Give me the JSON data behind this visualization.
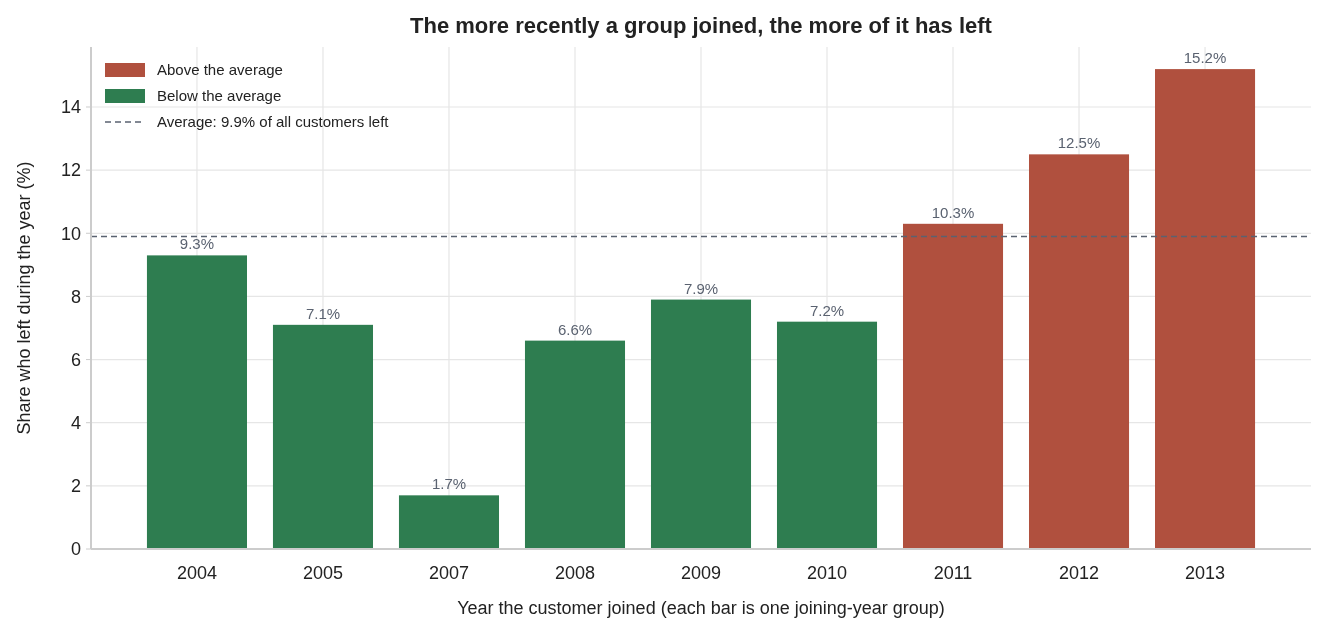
{
  "chart_data": {
    "type": "bar",
    "title": "The more recently a group joined, the more of it has left",
    "xlabel": "Year the customer joined (each bar is one joining-year group)",
    "ylabel": "Share who left during the year (%)",
    "categories": [
      "2004",
      "2005",
      "2007",
      "2008",
      "2009",
      "2010",
      "2011",
      "2012",
      "2013"
    ],
    "series": [
      {
        "name": "Above the average",
        "color": "#b0503e",
        "values": [
          null,
          null,
          null,
          null,
          null,
          null,
          10.3,
          12.5,
          15.2
        ],
        "value_labels": [
          null,
          null,
          null,
          null,
          null,
          null,
          "10.3%",
          "12.5%",
          "15.2%"
        ]
      },
      {
        "name": "Below the average",
        "color": "#2e7d50",
        "values": [
          9.3,
          7.1,
          1.7,
          6.6,
          7.9,
          7.2,
          null,
          null,
          null
        ],
        "value_labels": [
          "9.3%",
          "7.1%",
          "1.7%",
          "6.6%",
          "7.9%",
          "7.2%",
          null,
          null,
          null
        ]
      }
    ],
    "ylim": [
      0,
      15.9
    ],
    "yticks": [
      0,
      2,
      4,
      6,
      8,
      10,
      12,
      14
    ],
    "grid": true,
    "legend": "top left",
    "ref_lines": [
      {
        "axis": "y",
        "value": 9.9,
        "label": "Average: 9.9% of all customers left",
        "color": "#5a6270",
        "line_style": "dashed"
      }
    ]
  }
}
